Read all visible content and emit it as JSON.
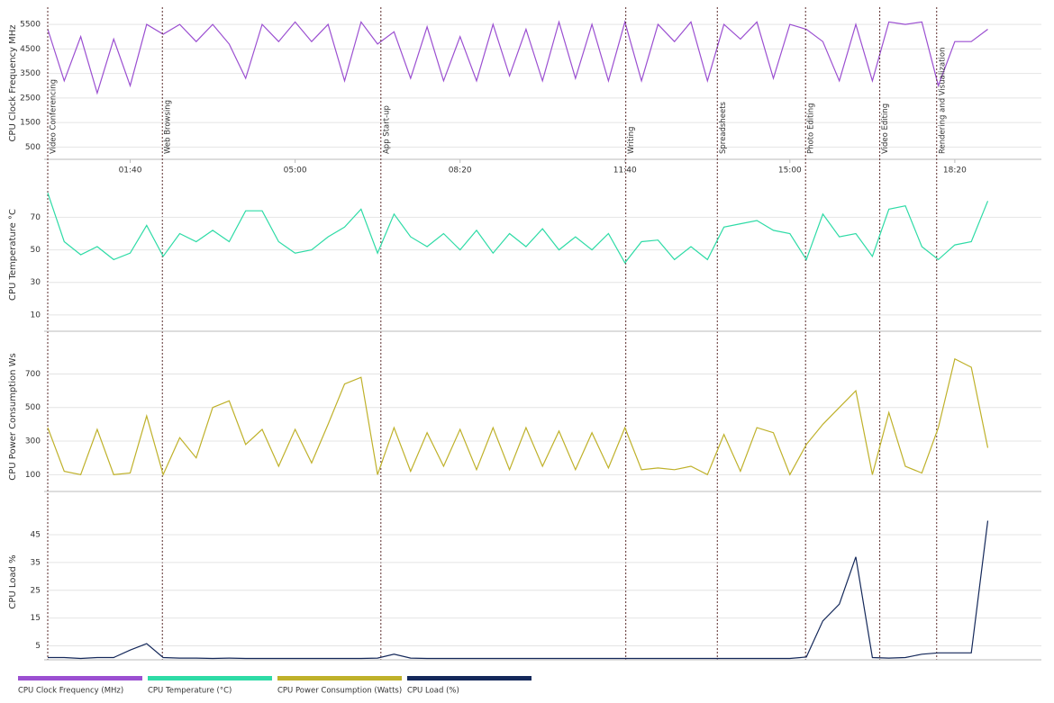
{
  "chart_data": [
    {
      "type": "line",
      "ylabel": "CPU Clock Frequency MHz",
      "x": [
        0,
        20,
        40,
        60,
        80,
        100,
        120,
        140,
        160,
        180,
        200,
        220,
        240,
        260,
        280,
        300,
        320,
        340,
        360,
        380,
        400,
        420,
        440,
        460,
        480,
        500,
        520,
        540,
        560,
        580,
        600,
        620,
        640,
        660,
        680,
        700,
        720,
        740,
        760,
        780,
        800,
        820,
        840,
        860,
        880,
        900,
        920,
        940,
        960,
        980,
        1000,
        1020,
        1040,
        1060,
        1080,
        1100,
        1120,
        1140
      ],
      "series": [
        {
          "name": "CPU Clock Frequency (MHz)",
          "color": "#9b4fd1",
          "values": [
            5300,
            3200,
            5000,
            2700,
            4900,
            3000,
            5500,
            5100,
            5500,
            4800,
            5500,
            4700,
            3300,
            5500,
            4800,
            5600,
            4800,
            5500,
            3200,
            5600,
            4700,
            5200,
            3300,
            5400,
            3200,
            5000,
            3200,
            5500,
            3400,
            5300,
            3200,
            5600,
            3300,
            5500,
            3200,
            5600,
            3200,
            5500,
            4800,
            5600,
            3200,
            5500,
            4900,
            5600,
            3300,
            5500,
            5300,
            4800,
            3200,
            5500,
            3200,
            5600,
            5500,
            5600,
            3000,
            4800,
            4800,
            5300
          ]
        }
      ],
      "xlim": [
        0,
        1205
      ],
      "ylim": [
        0,
        6200
      ],
      "xticks": [
        {
          "value": 100,
          "label": "01:40"
        },
        {
          "value": 300,
          "label": "05:00"
        },
        {
          "value": 500,
          "label": "08:20"
        },
        {
          "value": 700,
          "label": "11:40"
        },
        {
          "value": 900,
          "label": "15:00"
        },
        {
          "value": 1100,
          "label": "18:20"
        }
      ],
      "yticks": [
        500,
        1500,
        2500,
        3500,
        4500,
        5500
      ],
      "grid": true,
      "events": [
        {
          "x": 0,
          "label": "Video Conferencing"
        },
        {
          "x": 139,
          "label": "Web Browsing"
        },
        {
          "x": 404,
          "label": "App Start-up"
        },
        {
          "x": 701,
          "label": "Writing"
        },
        {
          "x": 812,
          "label": "Spreadsheets"
        },
        {
          "x": 919,
          "label": "Photo Editing"
        },
        {
          "x": 1009,
          "label": "Video Editing"
        },
        {
          "x": 1078,
          "label": "Rendering and Visualization"
        }
      ]
    },
    {
      "type": "line",
      "ylabel": "CPU Temperature °C",
      "x": [
        0,
        20,
        40,
        60,
        80,
        100,
        120,
        140,
        160,
        180,
        200,
        220,
        240,
        260,
        280,
        300,
        320,
        340,
        360,
        380,
        400,
        420,
        440,
        460,
        480,
        500,
        520,
        540,
        560,
        580,
        600,
        620,
        640,
        660,
        680,
        700,
        720,
        740,
        760,
        780,
        800,
        820,
        840,
        860,
        880,
        900,
        920,
        940,
        960,
        980,
        1000,
        1020,
        1040,
        1060,
        1080,
        1100,
        1120,
        1140
      ],
      "series": [
        {
          "name": "CPU Temperature (°C)",
          "color": "#2edba6",
          "values": [
            85,
            55,
            47,
            52,
            44,
            48,
            65,
            46,
            60,
            55,
            62,
            55,
            74,
            74,
            55,
            48,
            50,
            58,
            64,
            75,
            48,
            72,
            58,
            52,
            60,
            50,
            62,
            48,
            60,
            52,
            63,
            50,
            58,
            50,
            60,
            42,
            55,
            56,
            44,
            52,
            44,
            64,
            66,
            68,
            62,
            60,
            44,
            72,
            58,
            60,
            46,
            75,
            77,
            52,
            44,
            53,
            55,
            80
          ]
        }
      ],
      "xlim": [
        0,
        1205
      ],
      "ylim": [
        0,
        94
      ],
      "yticks": [
        10,
        30,
        50,
        70
      ],
      "grid": true
    },
    {
      "type": "line",
      "ylabel": "CPU Power Consumption Ws",
      "x": [
        0,
        20,
        40,
        60,
        80,
        100,
        120,
        140,
        160,
        180,
        200,
        220,
        240,
        260,
        280,
        300,
        320,
        340,
        360,
        380,
        400,
        420,
        440,
        460,
        480,
        500,
        520,
        540,
        560,
        580,
        600,
        620,
        640,
        660,
        680,
        700,
        720,
        740,
        760,
        780,
        800,
        820,
        840,
        860,
        880,
        900,
        920,
        940,
        960,
        980,
        1000,
        1020,
        1040,
        1060,
        1080,
        1100,
        1120,
        1140
      ],
      "series": [
        {
          "name": "CPU Power Consumption (Watts)",
          "color": "#bfb12a",
          "values": [
            380,
            120,
            100,
            370,
            100,
            110,
            450,
            100,
            320,
            200,
            500,
            540,
            280,
            370,
            150,
            370,
            170,
            400,
            640,
            680,
            100,
            380,
            120,
            350,
            150,
            370,
            130,
            380,
            130,
            380,
            150,
            360,
            130,
            350,
            140,
            380,
            130,
            140,
            130,
            150,
            100,
            340,
            120,
            380,
            350,
            100,
            280,
            400,
            500,
            600,
            100,
            470,
            150,
            110,
            380,
            790,
            740,
            260
          ]
        }
      ],
      "xlim": [
        0,
        1205
      ],
      "ylim": [
        0,
        890
      ],
      "yticks": [
        100,
        300,
        500,
        700
      ],
      "grid": true
    },
    {
      "type": "line",
      "ylabel": "CPU Load %",
      "x": [
        0,
        20,
        40,
        60,
        80,
        100,
        120,
        140,
        160,
        180,
        200,
        220,
        240,
        260,
        280,
        300,
        320,
        340,
        360,
        380,
        400,
        420,
        440,
        460,
        480,
        500,
        520,
        540,
        560,
        580,
        600,
        620,
        640,
        660,
        680,
        700,
        720,
        740,
        760,
        780,
        800,
        820,
        840,
        860,
        880,
        900,
        920,
        940,
        960,
        980,
        1000,
        1020,
        1040,
        1060,
        1080,
        1100,
        1120,
        1140
      ],
      "series": [
        {
          "name": "CPU Load (%)",
          "color": "#14285a",
          "values": [
            0.8,
            0.8,
            0.5,
            0.8,
            0.8,
            3.5,
            5.8,
            0.8,
            0.6,
            0.6,
            0.5,
            0.6,
            0.5,
            0.5,
            0.5,
            0.5,
            0.5,
            0.5,
            0.5,
            0.5,
            0.6,
            2,
            0.6,
            0.5,
            0.5,
            0.5,
            0.5,
            0.5,
            0.5,
            0.5,
            0.5,
            0.5,
            0.5,
            0.5,
            0.5,
            0.5,
            0.5,
            0.5,
            0.5,
            0.5,
            0.5,
            0.5,
            0.5,
            0.5,
            0.5,
            0.5,
            1,
            14,
            20,
            37,
            0.8,
            0.6,
            0.8,
            2,
            2.5,
            2.5,
            2.5,
            50
          ]
        }
      ],
      "xlim": [
        0,
        1205
      ],
      "ylim": [
        0,
        56
      ],
      "yticks": [
        5,
        15,
        25,
        35,
        45
      ],
      "grid": true
    }
  ]
}
